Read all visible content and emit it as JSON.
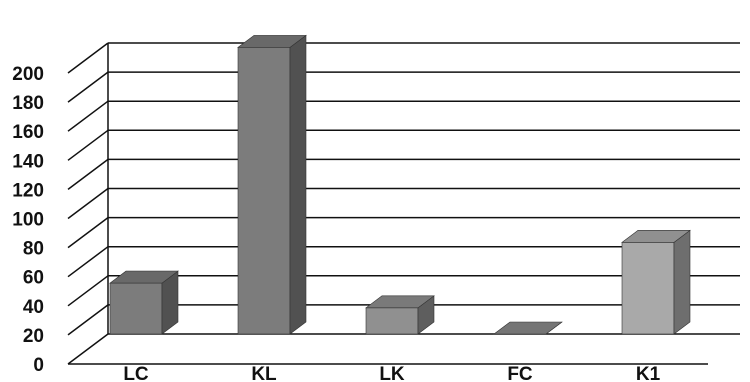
{
  "chart_data": {
    "type": "bar",
    "categories": [
      "LC",
      "KL",
      "LK",
      "FC",
      "K1"
    ],
    "values": [
      35,
      197,
      18,
      0,
      63
    ],
    "ylim": [
      0,
      200
    ],
    "yticks": [
      0,
      20,
      40,
      60,
      80,
      100,
      120,
      140,
      160,
      180,
      200
    ],
    "grid": true,
    "legend": "none",
    "three_d": true,
    "colors": {
      "bars": [
        "#7c7c7c",
        "#7c7c7c",
        "#909090",
        "#8a8a8a",
        "#a9a9a9"
      ],
      "grid": "#111111",
      "axis": "#111111"
    }
  }
}
